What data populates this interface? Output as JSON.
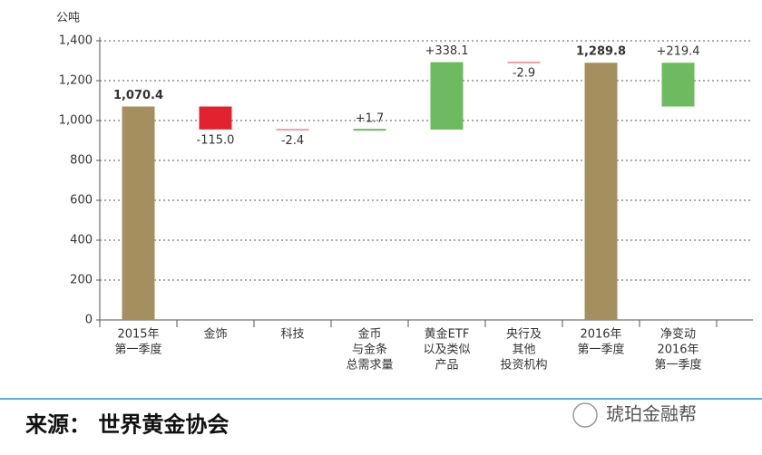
{
  "chart_data": {
    "type": "waterfall",
    "y_label": "公吨",
    "categories": [
      [
        "2015年",
        "第一季度"
      ],
      [
        "金饰"
      ],
      [
        "科技"
      ],
      [
        "金币",
        "与金条",
        "总需求量"
      ],
      [
        "黄金ETF",
        "以及类似",
        "产品"
      ],
      [
        "央行及",
        "其他",
        "投资机构"
      ],
      [
        "2016年",
        "第一季度"
      ],
      [
        "净变动",
        "2016年",
        "第一季度"
      ]
    ],
    "measure": [
      "absolute",
      "relative",
      "relative",
      "relative",
      "relative",
      "relative",
      "absolute",
      "net"
    ],
    "values": [
      1070.4,
      -115.0,
      -2.4,
      1.7,
      338.1,
      -2.9,
      1289.8,
      219.4
    ],
    "value_labels": [
      "1,070.4",
      "-115.0",
      "-2.4",
      "+1.7",
      "+338.1",
      "-2.9",
      "1,289.8",
      "+219.4"
    ],
    "colors": {
      "absolute": "#a68f5e",
      "decrease": "#e2222e",
      "increase": "#6cbb5e"
    },
    "ylim": [
      0,
      1400
    ],
    "yticks": [
      0,
      200,
      400,
      600,
      800,
      {
        "value": 1000,
        "label": "1,000"
      },
      {
        "value": 1200,
        "label": "1,200"
      },
      {
        "value": 1400,
        "label": "1,400"
      }
    ],
    "grid": true
  },
  "footer": {
    "source": "来源：  世界黄金协会",
    "watermark": "琥珀金融帮"
  }
}
